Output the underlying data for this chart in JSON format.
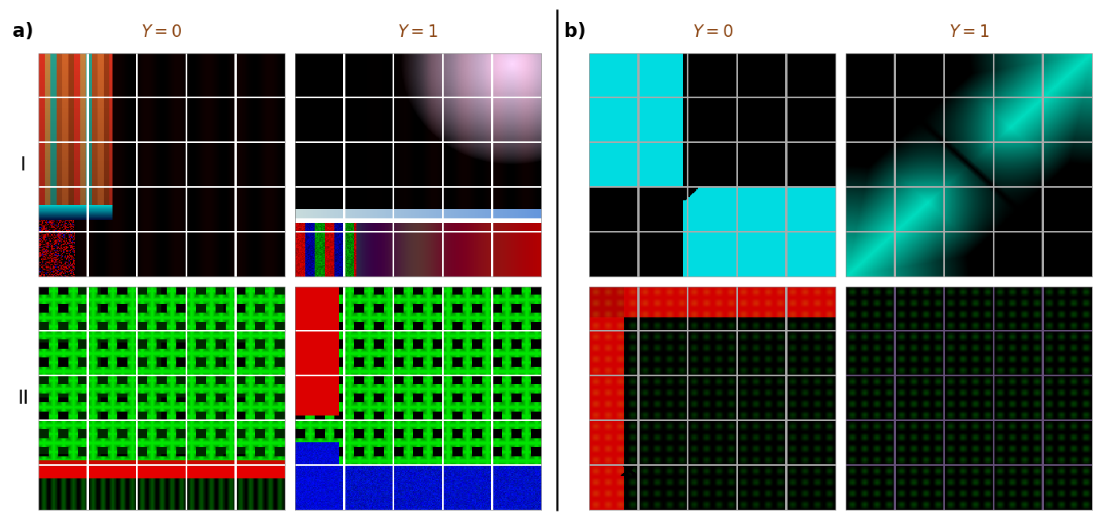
{
  "title_a": "a)",
  "title_b": "b)",
  "col_labels": [
    "$Y = 0$",
    "$Y = 1$"
  ],
  "row_labels": [
    "I",
    "II"
  ],
  "label_color": "#8B4513",
  "background_color": "#ffffff",
  "grid_color_white": [
    255,
    255,
    255
  ],
  "grid_color_gray": [
    180,
    180,
    180
  ],
  "grid_color_purple": [
    120,
    60,
    140
  ]
}
